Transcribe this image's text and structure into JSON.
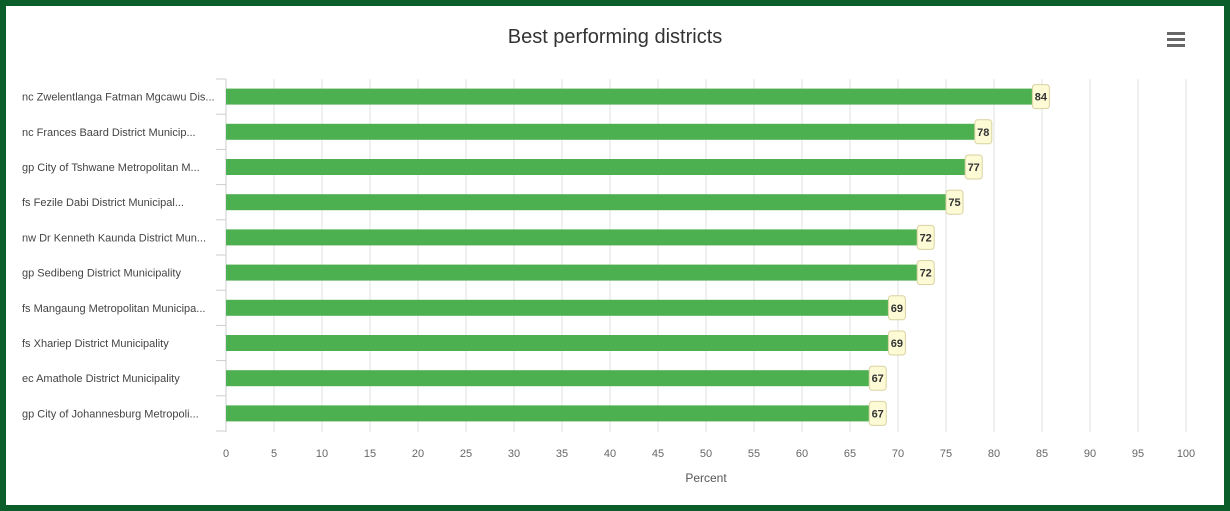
{
  "header": {
    "title": "Best performing districts",
    "menu_icon": "hamburger-menu-icon"
  },
  "colors": {
    "frame": "#0b5e2a",
    "bar": "#4caf50",
    "label_bg": "#fdfbd5",
    "label_border": "#d8d2a0",
    "grid": "#e0e0e0"
  },
  "chart_data": {
    "type": "bar",
    "orientation": "horizontal",
    "title": "Best performing districts",
    "xlabel": "Percent",
    "ylabel": "",
    "xlim": [
      0,
      100
    ],
    "x_ticks": [
      0,
      5,
      10,
      15,
      20,
      25,
      30,
      35,
      40,
      45,
      50,
      55,
      60,
      65,
      70,
      75,
      80,
      85,
      90,
      95,
      100
    ],
    "grid": true,
    "categories": [
      "nc Zwelentlanga Fatman Mgcawu Dis...",
      "nc Frances Baard District Municip...",
      "gp City of Tshwane Metropolitan M...",
      "fs Fezile Dabi District Municipal...",
      "nw Dr Kenneth Kaunda District Mun...",
      "gp Sedibeng District Municipality",
      "fs Mangaung Metropolitan Municipa...",
      "fs Xhariep District Municipality",
      "ec Amathole District Municipality",
      "gp City of Johannesburg Metropoli..."
    ],
    "values": [
      84,
      78,
      77,
      75,
      72,
      72,
      69,
      69,
      67,
      67
    ]
  }
}
